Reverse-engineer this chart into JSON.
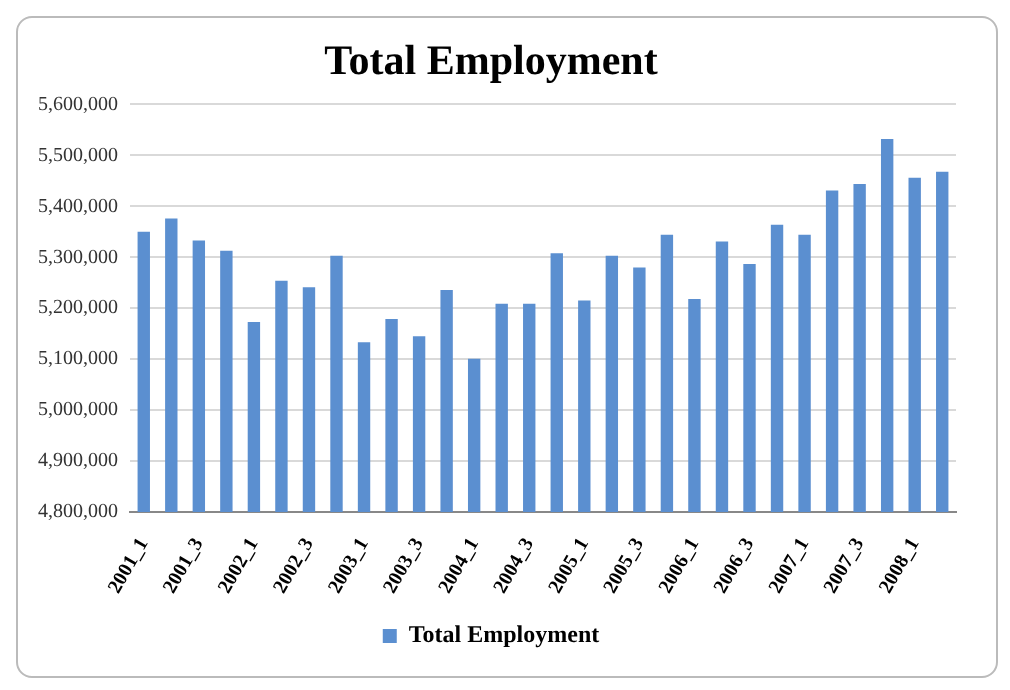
{
  "chart_data": {
    "type": "bar",
    "title": "Total Employment",
    "categories": [
      "2001_1",
      null,
      "2001_3",
      null,
      "2002_1",
      null,
      "2002_3",
      null,
      "2003_1",
      null,
      "2003_3",
      null,
      "2004_1",
      null,
      "2004_3",
      null,
      "2005_1",
      null,
      "2005_3",
      null,
      "2006_1",
      null,
      "2006_3",
      null,
      "2007_1",
      null,
      "2007_3",
      null,
      "2008_1",
      null
    ],
    "series": [
      {
        "name": "Total Employment",
        "color": "#5b8fd0",
        "values": [
          5350000,
          5376000,
          5333000,
          5313000,
          5173000,
          5254000,
          5241000,
          5303000,
          5133000,
          5179000,
          5145000,
          5236000,
          5101000,
          5209000,
          5209000,
          5308000,
          5215000,
          5303000,
          5280000,
          5344000,
          5218000,
          5331000,
          5287000,
          5364000,
          5344000,
          5431000,
          5444000,
          5532000,
          5456000,
          5468000
        ]
      }
    ],
    "ylim": [
      4800000,
      5600000
    ],
    "yticks": [
      {
        "value": 4800000,
        "label": "4,800,000"
      },
      {
        "value": 4900000,
        "label": "4,900,000"
      },
      {
        "value": 5000000,
        "label": "5,000,000"
      },
      {
        "value": 5100000,
        "label": "5,100,000"
      },
      {
        "value": 5200000,
        "label": "5,200,000"
      },
      {
        "value": 5300000,
        "label": "5,300,000"
      },
      {
        "value": 5400000,
        "label": "5,400,000"
      },
      {
        "value": 5500000,
        "label": "5,500,000"
      },
      {
        "value": 5600000,
        "label": "5,600,000"
      }
    ],
    "grid": "y",
    "legend": "bottom"
  }
}
